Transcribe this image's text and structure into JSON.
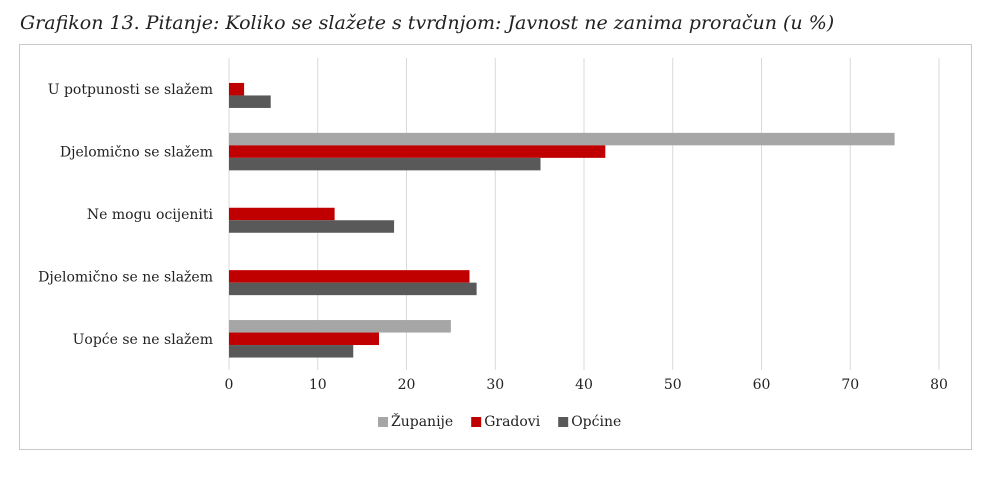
{
  "title": "Grafikon 13. Pitanje: Koliko se slažete s tvrdnjom: Javnost ne zanima proračun (u %)",
  "chart_data": {
    "type": "bar",
    "orientation": "horizontal",
    "categories": [
      "U potpunosti se slažem",
      "Djelomično se slažem",
      "Ne mogu ocijeniti",
      "Djelomično se ne slažem",
      "Uopće se ne slažem"
    ],
    "series": [
      {
        "name": "Županije",
        "color": "#a6a6a6",
        "values": [
          0,
          75,
          0,
          0,
          25
        ]
      },
      {
        "name": "Gradovi",
        "color": "#c00000",
        "values": [
          1.7,
          42.4,
          11.9,
          27.1,
          16.9
        ]
      },
      {
        "name": "Općine",
        "color": "#595959",
        "values": [
          4.7,
          35.1,
          18.6,
          27.9,
          14
        ]
      }
    ],
    "xlim": [
      0,
      80
    ],
    "xticks": [
      "0",
      "10",
      "20",
      "30",
      "40",
      "50",
      "60",
      "70",
      "80"
    ],
    "grid": true,
    "legend": "bottom"
  }
}
